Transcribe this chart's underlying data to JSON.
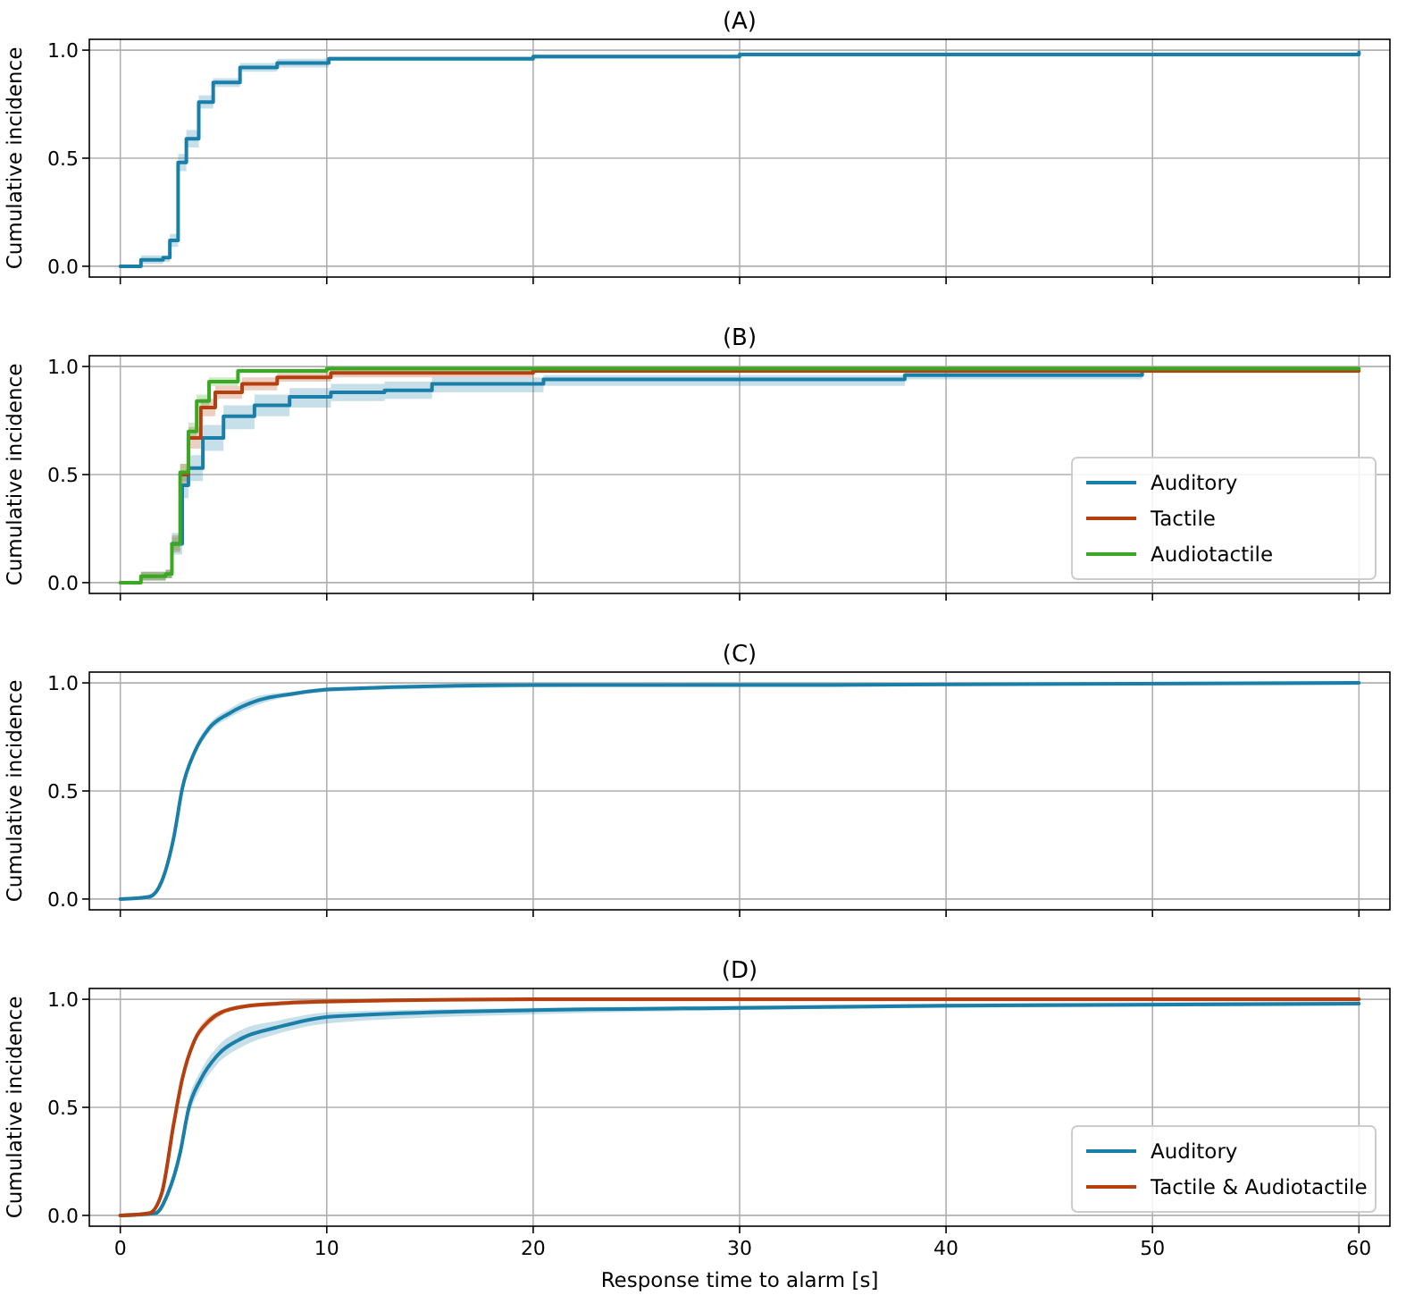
{
  "chart_data": [
    {
      "type": "step",
      "title": "(A)",
      "ylabel": "Cumulative incidence",
      "xlim": [
        -1.5,
        61.5
      ],
      "ylim": [
        -0.05,
        1.05
      ],
      "xticks": [
        0,
        10,
        20,
        30,
        40,
        50,
        60
      ],
      "yticks": [
        {
          "value": 0,
          "label": "0.0"
        },
        {
          "value": 0.5,
          "label": "0.5"
        },
        {
          "value": 1,
          "label": "1.0"
        }
      ],
      "grid": true,
      "tick_labels": "y",
      "legend": false,
      "series": [
        {
          "color": "#1a7fa8",
          "x": [
            0,
            1.0,
            2.07,
            2.4,
            2.8,
            3.2,
            3.8,
            4.5,
            5.8,
            7.6,
            10.1,
            20,
            30,
            40,
            60
          ],
          "values": [
            0,
            0.03,
            0.04,
            0.12,
            0.48,
            0.59,
            0.76,
            0.85,
            0.92,
            0.94,
            0.96,
            0.97,
            0.98,
            0.98,
            0.99
          ],
          "lower": [
            0,
            0.01,
            0.02,
            0.09,
            0.44,
            0.55,
            0.73,
            0.83,
            0.9,
            0.92,
            0.95,
            0.96,
            0.97,
            0.97,
            0.98
          ],
          "upper": [
            0,
            0.05,
            0.05,
            0.15,
            0.52,
            0.63,
            0.79,
            0.87,
            0.94,
            0.96,
            0.97,
            0.98,
            0.99,
            0.99,
            1.0
          ]
        }
      ]
    },
    {
      "type": "step",
      "title": "(B)",
      "ylabel": "Cumulative incidence",
      "xlim": [
        -1.5,
        61.5
      ],
      "ylim": [
        -0.05,
        1.05
      ],
      "xticks": [
        0,
        10,
        20,
        30,
        40,
        50,
        60
      ],
      "yticks": [
        {
          "value": 0,
          "label": "0.0"
        },
        {
          "value": 0.5,
          "label": "0.5"
        },
        {
          "value": 1,
          "label": "1.0"
        }
      ],
      "grid": true,
      "tick_labels": "y",
      "legend": "lower right",
      "series": [
        {
          "name": "Auditory",
          "color": "#1a7fa8",
          "x": [
            0,
            1.0,
            2.2,
            2.5,
            3.0,
            3.3,
            4.0,
            5.0,
            6.5,
            8.2,
            10.2,
            12.8,
            15.1,
            20.5,
            38,
            49.5
          ],
          "values": [
            null,
            null,
            null,
            0.18,
            0.45,
            0.53,
            0.67,
            0.77,
            0.82,
            0.86,
            0.88,
            0.89,
            0.92,
            0.94,
            0.96,
            0.97
          ],
          "lower": [
            0,
            0.01,
            0.02,
            0.13,
            0.39,
            0.47,
            0.61,
            0.71,
            0.77,
            0.81,
            0.84,
            0.85,
            0.88,
            0.91,
            0.94,
            0.95
          ],
          "upper": [
            0,
            0.05,
            0.06,
            0.23,
            0.51,
            0.59,
            0.73,
            0.82,
            0.87,
            0.9,
            0.92,
            0.93,
            0.95,
            0.96,
            0.98,
            0.98
          ]
        },
        {
          "name": "Tactile",
          "color": "#b5400f",
          "x": [
            0,
            1.0,
            2.2,
            2.5,
            2.9,
            3.3,
            3.9,
            4.6,
            5.9,
            7.6,
            10.2,
            20,
            60
          ],
          "values": [
            null,
            null,
            null,
            null,
            0.5,
            0.67,
            0.81,
            0.88,
            0.92,
            0.95,
            0.97,
            0.98,
            0.98
          ],
          "lower": [
            0,
            0.01,
            0.02,
            0.14,
            0.45,
            0.62,
            0.77,
            0.85,
            0.89,
            0.93,
            0.95,
            0.97,
            0.97
          ],
          "upper": [
            0,
            0.05,
            0.06,
            0.22,
            0.55,
            0.72,
            0.85,
            0.91,
            0.95,
            0.97,
            0.98,
            0.99,
            0.99
          ]
        },
        {
          "name": "Audiotactile",
          "color": "#3aa822",
          "x": [
            0,
            1.0,
            2.2,
            2.5,
            2.9,
            3.3,
            3.7,
            4.3,
            5.7,
            10,
            60
          ],
          "values": [
            0,
            0.03,
            0.04,
            0.18,
            0.51,
            0.7,
            0.84,
            0.93,
            0.98,
            0.99,
            0.99
          ],
          "lower": [
            0,
            0.01,
            0.02,
            0.15,
            0.47,
            0.66,
            0.81,
            0.91,
            0.97,
            0.98,
            0.98
          ],
          "upper": [
            0,
            0.05,
            0.06,
            0.21,
            0.55,
            0.74,
            0.87,
            0.95,
            0.99,
            1.0,
            1.0
          ]
        }
      ]
    },
    {
      "type": "line",
      "title": "(C)",
      "ylabel": "Cumulative incidence",
      "xlim": [
        -1.5,
        61.5
      ],
      "ylim": [
        -0.05,
        1.05
      ],
      "xticks": [
        0,
        10,
        20,
        30,
        40,
        50,
        60
      ],
      "yticks": [
        {
          "value": 0,
          "label": "0.0"
        },
        {
          "value": 0.5,
          "label": "0.5"
        },
        {
          "value": 1,
          "label": "1.0"
        }
      ],
      "grid": true,
      "tick_labels": "y",
      "legend": false,
      "series": [
        {
          "color": "#1a7fa8",
          "x": [
            0,
            1.4,
            2.0,
            2.6,
            3.0,
            3.6,
            4.3,
            5.3,
            6.7,
            8.4,
            10.2,
            20,
            30,
            60
          ],
          "values": [
            0,
            0.01,
            0.08,
            0.29,
            0.51,
            0.68,
            0.79,
            0.86,
            0.92,
            0.95,
            0.97,
            0.99,
            0.99,
            1.0
          ],
          "lower": [
            0,
            0.0,
            0.07,
            0.27,
            0.49,
            0.66,
            0.77,
            0.84,
            0.9,
            0.94,
            0.96,
            0.98,
            0.99,
            0.99
          ],
          "upper": [
            0,
            0.02,
            0.09,
            0.31,
            0.53,
            0.7,
            0.81,
            0.88,
            0.94,
            0.96,
            0.98,
            0.99,
            1.0,
            1.0
          ]
        }
      ]
    },
    {
      "type": "line",
      "title": "(D)",
      "ylabel": "Cumulative incidence",
      "xlabel": "Response time to alarm [s]",
      "xlim": [
        -1.5,
        61.5
      ],
      "ylim": [
        -0.05,
        1.05
      ],
      "xticks": [
        0,
        10,
        20,
        30,
        40,
        50,
        60
      ],
      "yticks": [
        {
          "value": 0,
          "label": "0.0"
        },
        {
          "value": 0.5,
          "label": "0.5"
        },
        {
          "value": 1,
          "label": "1.0"
        }
      ],
      "grid": true,
      "legend": "lower right",
      "series": [
        {
          "name": "Auditory",
          "color": "#1a7fa8",
          "x": [
            0,
            1.7,
            2.3,
            2.9,
            3.3,
            3.9,
            4.7,
            5.9,
            7.6,
            10.2,
            20,
            30,
            40,
            60
          ],
          "values": [
            0,
            0.01,
            0.1,
            0.29,
            0.49,
            0.63,
            0.74,
            0.82,
            0.87,
            0.92,
            0.95,
            0.96,
            0.97,
            0.98
          ],
          "lower": [
            0,
            0.0,
            0.08,
            0.26,
            0.45,
            0.59,
            0.7,
            0.78,
            0.84,
            0.89,
            0.93,
            0.95,
            0.96,
            0.97
          ],
          "upper": [
            0,
            0.02,
            0.12,
            0.32,
            0.53,
            0.67,
            0.78,
            0.86,
            0.9,
            0.94,
            0.96,
            0.97,
            0.98,
            0.99
          ]
        },
        {
          "name": "Tactile & Audiotactile",
          "color": "#b5400f",
          "x": [
            0,
            1.4,
            2.0,
            2.6,
            3.0,
            3.6,
            4.3,
            5.6,
            7.6,
            10.2,
            20,
            60
          ],
          "values": [
            0,
            0.01,
            0.1,
            0.43,
            0.63,
            0.81,
            0.9,
            0.96,
            0.98,
            0.99,
            1.0,
            1.0
          ],
          "lower": [
            0,
            0.0,
            0.08,
            0.4,
            0.6,
            0.79,
            0.88,
            0.95,
            0.97,
            0.98,
            0.99,
            0.99
          ],
          "upper": [
            0,
            0.02,
            0.12,
            0.46,
            0.66,
            0.83,
            0.92,
            0.97,
            0.99,
            1.0,
            1.0,
            1.0
          ]
        }
      ]
    }
  ]
}
